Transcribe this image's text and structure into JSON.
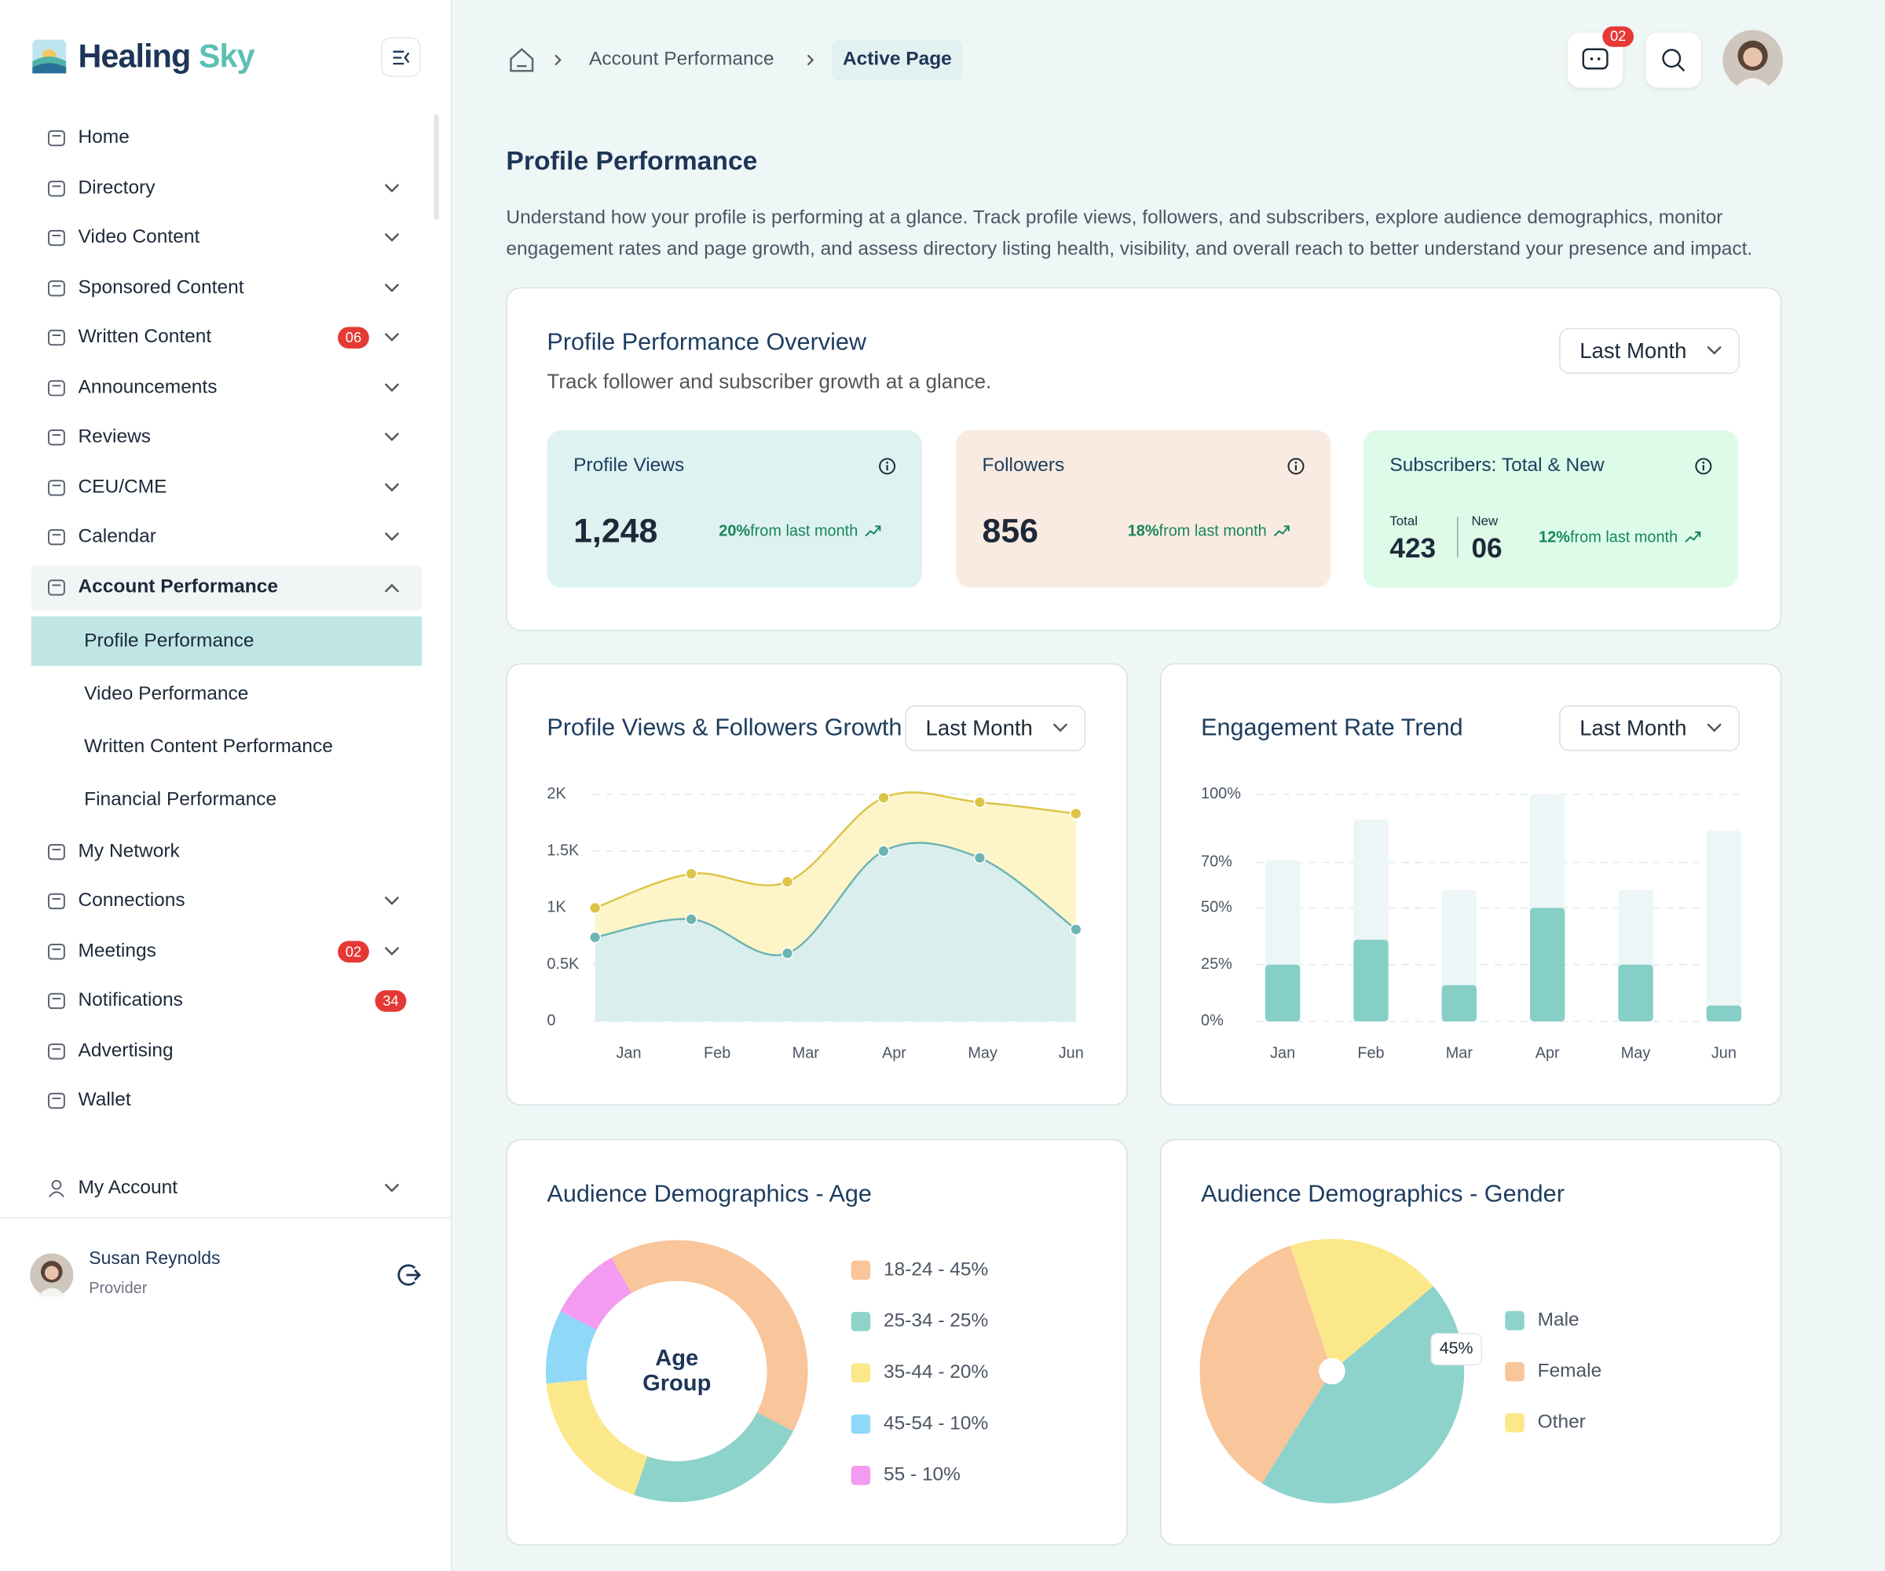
{
  "sidebar": {
    "brand": [
      "Healing",
      "Sky"
    ],
    "nav": [
      {
        "label": "Home"
      },
      {
        "label": "Directory",
        "expandable": true
      },
      {
        "label": "Video Content",
        "expandable": true
      },
      {
        "label": "Sponsored Content",
        "expandable": true
      },
      {
        "label": "Written Content",
        "badge": "06",
        "expandable": true
      },
      {
        "label": "Announcements",
        "expandable": true
      },
      {
        "label": "Reviews",
        "expandable": true
      },
      {
        "label": "CEU/CME",
        "expandable": true
      },
      {
        "label": "Calendar",
        "expandable": true
      },
      {
        "label": "Account Performance",
        "expandable": true,
        "expanded": true,
        "children": [
          {
            "label": "Profile Performance",
            "active": true
          },
          {
            "label": "Video Performance"
          },
          {
            "label": "Written Content Performance"
          },
          {
            "label": "Financial Performance"
          }
        ]
      },
      {
        "label": "My Network"
      },
      {
        "label": "Connections",
        "expandable": true
      },
      {
        "label": "Meetings",
        "badge": "02",
        "expandable": true
      },
      {
        "label": "Notifications",
        "badge": "34"
      },
      {
        "label": "Advertising"
      },
      {
        "label": "Wallet"
      }
    ],
    "account": {
      "label": "My Account",
      "expandable": true
    },
    "user": {
      "name": "Susan Reynolds",
      "role": "Provider"
    }
  },
  "header": {
    "breadcrumb": [
      "Account Performance",
      "Active Page"
    ],
    "message_badge": "02"
  },
  "page": {
    "title": "Profile Performance",
    "description": "Understand how your profile is performing at a glance. Track profile views, followers, and subscribers, explore audience demographics, monitor engagement rates and page growth, and assess directory listing health, visibility, and overall reach to better understand your presence and impact."
  },
  "overview": {
    "title": "Profile Performance Overview",
    "subtitle": "Track follower and subscriber growth at a glance.",
    "period": "Last Month",
    "comparison": "from last month",
    "cards": [
      {
        "label": "Profile Views",
        "value": "1,248",
        "change": "20%"
      },
      {
        "label": "Followers",
        "value": "856",
        "change": "18%"
      },
      {
        "label": "Subscribers: Total & New",
        "total_label": "Total",
        "total": "423",
        "new_label": "New",
        "new": "06",
        "change": "12%"
      }
    ]
  },
  "chart_data": [
    {
      "type": "area",
      "title": "Profile Views & Followers Growth",
      "period": "Last Month",
      "categories": [
        "Jan",
        "Feb",
        "Mar",
        "Apr",
        "May",
        "Jun"
      ],
      "series": [
        {
          "color": "#dcc447",
          "fill": "#fdf5c8",
          "values": [
            1000,
            1300,
            1230,
            1970,
            1930,
            1830
          ]
        },
        {
          "color": "#6db4b3",
          "fill": "#d9eeed",
          "values": [
            740,
            900,
            600,
            1500,
            1440,
            810
          ]
        }
      ],
      "ylim": [
        0,
        2000
      ],
      "yticks": [
        0,
        {
          "value": 500,
          "label": "0.5K"
        },
        {
          "value": 1000,
          "label": "1K"
        },
        {
          "value": 1500,
          "label": "1.5K"
        },
        {
          "value": 2000,
          "label": "2K"
        }
      ],
      "grid": true
    },
    {
      "type": "bar",
      "title": "Engagement Rate Trend",
      "period": "Last Month",
      "categories": [
        "Jan",
        "Feb",
        "Mar",
        "Apr",
        "May",
        "Jun"
      ],
      "series": [
        {
          "color": "#edf6f6",
          "values": [
            71,
            89,
            58,
            100,
            58,
            84
          ]
        },
        {
          "color": "#86cfc7",
          "values": [
            25,
            36,
            16,
            50,
            25,
            7
          ]
        }
      ],
      "ylim": [
        0,
        100
      ],
      "yticks": [
        {
          "value": 0,
          "label": "0%"
        },
        {
          "value": 25,
          "label": "25%"
        },
        {
          "value": 50,
          "label": "50%"
        },
        {
          "value": 70,
          "label": "70%"
        },
        {
          "value": 100,
          "label": "100%"
        }
      ],
      "grid": true
    },
    {
      "type": "donut",
      "title": "Audience Demographics - Age",
      "center_label": [
        "Age",
        "Group"
      ],
      "categories": [
        "18-24 - 45%",
        "25-34 - 25%",
        "35-44 - 20%",
        "45-54 - 10%",
        "55 - 10%"
      ],
      "values": [
        45,
        25,
        20,
        10,
        10
      ],
      "colors": [
        "#f9c59a",
        "#8dd3cb",
        "#fbe88a",
        "#8fd8f8",
        "#f39bf0"
      ]
    },
    {
      "type": "pie",
      "title": "Audience Demographics - Gender",
      "categories": [
        "Male",
        "Female",
        "Other"
      ],
      "values": [
        45,
        36,
        19
      ],
      "value_labels": [
        "45%",
        null,
        null
      ],
      "colors": [
        "#8dd3cb",
        "#f9c59a",
        "#fbe88a"
      ]
    }
  ]
}
